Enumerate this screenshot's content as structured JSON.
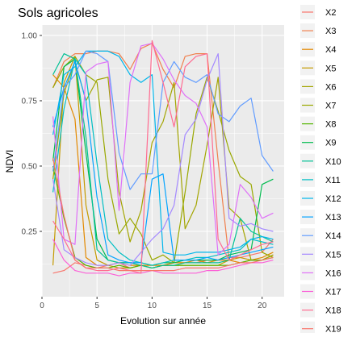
{
  "chart_data": {
    "type": "line",
    "title": "Sols agricoles",
    "xlabel": "Evolution sur année",
    "ylabel": "NDVI",
    "xlim": [
      0,
      22
    ],
    "ylim": [
      0,
      1.04
    ],
    "x_ticks": [
      0,
      5,
      10,
      15,
      20
    ],
    "y_ticks": [
      0.25,
      0.5,
      0.75,
      1.0
    ],
    "x_tick_labels": [
      "0",
      "5",
      "10",
      "15",
      "20"
    ],
    "y_tick_labels": [
      "0.25",
      "0.50",
      "0.75",
      "1.00"
    ],
    "grid": true,
    "legend_position": "right",
    "x": [
      1,
      2,
      3,
      4,
      5,
      6,
      7,
      8,
      9,
      10,
      11,
      12,
      13,
      14,
      15,
      16,
      17,
      18,
      19,
      20,
      21
    ],
    "series": [
      {
        "name": "X2",
        "color": "#F8766D",
        "values": [
          0.09,
          0.1,
          0.13,
          0.12,
          0.11,
          0.12,
          0.13,
          0.11,
          0.12,
          0.11,
          0.12,
          0.13,
          0.13,
          0.13,
          0.14,
          0.14,
          0.15,
          0.15,
          0.16,
          0.17,
          0.22
        ]
      },
      {
        "name": "X3",
        "color": "#F07F4D",
        "values": [
          0.8,
          0.9,
          0.93,
          0.93,
          0.94,
          0.94,
          0.93,
          0.87,
          0.95,
          0.97,
          0.87,
          0.8,
          0.92,
          0.93,
          0.93,
          0.52,
          0.14,
          0.13,
          0.14,
          0.14,
          0.16
        ]
      },
      {
        "name": "X4",
        "color": "#E38900",
        "values": [
          0.85,
          0.8,
          0.68,
          0.15,
          0.12,
          0.12,
          0.13,
          0.12,
          0.12,
          0.12,
          0.12,
          0.13,
          0.13,
          0.14,
          0.13,
          0.14,
          0.14,
          0.13,
          0.14,
          0.15,
          0.17
        ]
      },
      {
        "name": "X5",
        "color": "#C49A00",
        "values": [
          0.12,
          0.82,
          0.92,
          0.35,
          0.14,
          0.12,
          0.11,
          0.11,
          0.12,
          0.11,
          0.12,
          0.12,
          0.12,
          0.12,
          0.12,
          0.12,
          0.14,
          0.15,
          0.14,
          0.14,
          0.16
        ]
      },
      {
        "name": "X6",
        "color": "#A3A500",
        "values": [
          0.45,
          0.78,
          0.9,
          0.75,
          0.83,
          0.84,
          0.4,
          0.21,
          0.33,
          0.59,
          0.67,
          0.82,
          0.26,
          0.35,
          0.58,
          0.84,
          0.34,
          0.3,
          0.14,
          0.14,
          0.16
        ]
      },
      {
        "name": "X7",
        "color": "#99A800",
        "values": [
          0.8,
          0.88,
          0.92,
          0.85,
          0.82,
          0.45,
          0.24,
          0.3,
          0.24,
          0.14,
          0.16,
          0.13,
          0.4,
          0.7,
          0.84,
          0.71,
          0.56,
          0.46,
          0.43,
          0.17,
          0.15
        ]
      },
      {
        "name": "X8",
        "color": "#53B400",
        "values": [
          0.5,
          0.3,
          0.15,
          0.12,
          0.11,
          0.11,
          0.12,
          0.11,
          0.12,
          0.11,
          0.12,
          0.12,
          0.12,
          0.12,
          0.12,
          0.12,
          0.12,
          0.13,
          0.14,
          0.14,
          0.15
        ]
      },
      {
        "name": "X9",
        "color": "#00BB4E",
        "values": [
          0.52,
          0.88,
          0.91,
          0.55,
          0.22,
          0.14,
          0.13,
          0.13,
          0.13,
          0.12,
          0.13,
          0.13,
          0.14,
          0.14,
          0.14,
          0.14,
          0.16,
          0.17,
          0.18,
          0.43,
          0.45
        ]
      },
      {
        "name": "X10",
        "color": "#00C094",
        "values": [
          0.85,
          0.93,
          0.91,
          0.61,
          0.18,
          0.14,
          0.13,
          0.13,
          0.12,
          0.11,
          0.12,
          0.12,
          0.13,
          0.13,
          0.13,
          0.13,
          0.14,
          0.3,
          0.25,
          0.23,
          0.21
        ]
      },
      {
        "name": "X11",
        "color": "#00BFC4",
        "values": [
          0.4,
          0.72,
          0.91,
          0.85,
          0.51,
          0.22,
          0.17,
          0.14,
          0.13,
          0.12,
          0.13,
          0.14,
          0.14,
          0.15,
          0.15,
          0.16,
          0.17,
          0.18,
          0.22,
          0.21,
          0.2
        ]
      },
      {
        "name": "X12",
        "color": "#00B6EB",
        "values": [
          0.62,
          0.85,
          0.88,
          0.94,
          0.94,
          0.94,
          0.92,
          0.85,
          0.82,
          0.85,
          0.17,
          0.16,
          0.16,
          0.17,
          0.17,
          0.17,
          0.18,
          0.19,
          0.22,
          0.23,
          0.22
        ]
      },
      {
        "name": "X13",
        "color": "#06A4FF",
        "values": [
          0.65,
          0.8,
          0.9,
          0.75,
          0.38,
          0.16,
          0.14,
          0.13,
          0.13,
          0.45,
          0.47,
          0.14,
          0.14,
          0.14,
          0.15,
          0.14,
          0.15,
          0.16,
          0.17,
          0.18,
          0.19
        ]
      },
      {
        "name": "X14",
        "color": "#619CFF",
        "values": [
          0.48,
          0.8,
          0.85,
          0.94,
          0.93,
          0.9,
          0.55,
          0.41,
          0.47,
          0.47,
          0.82,
          0.9,
          0.84,
          0.82,
          0.85,
          0.7,
          0.67,
          0.73,
          0.76,
          0.54,
          0.48
        ]
      },
      {
        "name": "X15",
        "color": "#A58AFF",
        "values": [
          0.45,
          0.18,
          0.15,
          0.13,
          0.12,
          0.12,
          0.13,
          0.12,
          0.17,
          0.22,
          0.26,
          0.35,
          0.62,
          0.68,
          0.83,
          0.93,
          0.3,
          0.27,
          0.28,
          0.26,
          0.25
        ]
      },
      {
        "name": "X16",
        "color": "#DF70F8",
        "values": [
          0.69,
          0.22,
          0.2,
          0.86,
          0.89,
          0.9,
          0.33,
          0.82,
          0.96,
          0.97,
          0.91,
          0.83,
          0.77,
          0.74,
          0.65,
          0.16,
          0.2,
          0.43,
          0.38,
          0.3,
          0.32
        ]
      },
      {
        "name": "X17",
        "color": "#FB61D7",
        "values": [
          0.22,
          0.14,
          0.1,
          0.09,
          0.09,
          0.09,
          0.08,
          0.09,
          0.09,
          0.1,
          0.09,
          0.09,
          0.09,
          0.09,
          0.1,
          0.1,
          0.11,
          0.12,
          0.13,
          0.13,
          0.14
        ]
      },
      {
        "name": "X18",
        "color": "#FF6C91",
        "values": [
          0.29,
          0.22,
          0.14,
          0.11,
          0.1,
          0.1,
          0.11,
          0.1,
          0.09,
          0.98,
          0.82,
          0.65,
          0.88,
          0.92,
          0.93,
          0.22,
          0.14,
          0.16,
          0.18,
          0.2,
          0.21
        ]
      },
      {
        "name": "X19",
        "color": "#F8766D",
        "values": [
          0.53,
          0.31,
          0.14,
          0.11,
          0.11,
          0.11,
          0.1,
          0.1,
          0.1,
          0.1,
          0.1,
          0.1,
          0.11,
          0.11,
          0.11,
          0.11,
          0.12,
          0.13,
          0.13,
          0.14,
          0.15
        ]
      }
    ]
  }
}
